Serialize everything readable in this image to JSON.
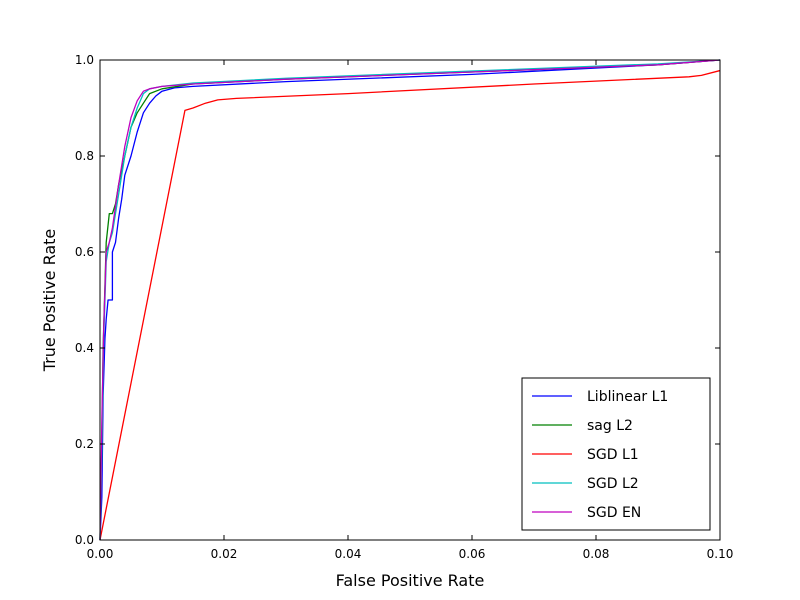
{
  "chart_data": {
    "type": "line",
    "title": "",
    "xlabel": "False Positive Rate",
    "ylabel": "True Positive Rate",
    "xlim": [
      0.0,
      0.1
    ],
    "ylim": [
      0.0,
      1.0
    ],
    "x_ticks": [
      "0.00",
      "0.02",
      "0.04",
      "0.06",
      "0.08",
      "0.10"
    ],
    "y_ticks": [
      "0.0",
      "0.2",
      "0.4",
      "0.6",
      "0.8",
      "1.0"
    ],
    "grid": false,
    "legend_position": "lower-right",
    "series": [
      {
        "name": "Liblinear L1",
        "color": "#0000ff",
        "points": [
          [
            0.0,
            0.0
          ],
          [
            0.0003,
            0.09
          ],
          [
            0.0005,
            0.3
          ],
          [
            0.0008,
            0.42
          ],
          [
            0.001,
            0.46
          ],
          [
            0.0013,
            0.5
          ],
          [
            0.0015,
            0.5
          ],
          [
            0.002,
            0.5
          ],
          [
            0.002,
            0.6
          ],
          [
            0.0025,
            0.62
          ],
          [
            0.003,
            0.67
          ],
          [
            0.0035,
            0.71
          ],
          [
            0.004,
            0.76
          ],
          [
            0.005,
            0.8
          ],
          [
            0.006,
            0.85
          ],
          [
            0.007,
            0.89
          ],
          [
            0.008,
            0.91
          ],
          [
            0.009,
            0.925
          ],
          [
            0.01,
            0.935
          ],
          [
            0.012,
            0.942
          ],
          [
            0.015,
            0.945
          ],
          [
            0.03,
            0.955
          ],
          [
            0.06,
            0.97
          ],
          [
            0.09,
            0.99
          ],
          [
            0.1,
            1.0
          ]
        ]
      },
      {
        "name": "sag L2",
        "color": "#008000",
        "points": [
          [
            0.0,
            0.0
          ],
          [
            0.0003,
            0.2
          ],
          [
            0.0005,
            0.4
          ],
          [
            0.001,
            0.62
          ],
          [
            0.0015,
            0.68
          ],
          [
            0.002,
            0.68
          ],
          [
            0.0025,
            0.7
          ],
          [
            0.003,
            0.74
          ],
          [
            0.004,
            0.8
          ],
          [
            0.005,
            0.86
          ],
          [
            0.006,
            0.89
          ],
          [
            0.007,
            0.91
          ],
          [
            0.008,
            0.93
          ],
          [
            0.01,
            0.94
          ],
          [
            0.015,
            0.95
          ],
          [
            0.03,
            0.96
          ],
          [
            0.06,
            0.975
          ],
          [
            0.09,
            0.99
          ],
          [
            0.1,
            1.0
          ]
        ]
      },
      {
        "name": "SGD L1",
        "color": "#ff0000",
        "points": [
          [
            0.0,
            0.0
          ],
          [
            0.0137,
            0.895
          ],
          [
            0.015,
            0.9
          ],
          [
            0.017,
            0.91
          ],
          [
            0.019,
            0.917
          ],
          [
            0.022,
            0.92
          ],
          [
            0.04,
            0.93
          ],
          [
            0.07,
            0.95
          ],
          [
            0.095,
            0.965
          ],
          [
            0.097,
            0.968
          ],
          [
            0.1,
            0.978
          ]
        ]
      },
      {
        "name": "SGD L2",
        "color": "#00bfbf",
        "points": [
          [
            0.0,
            0.0
          ],
          [
            0.0003,
            0.2
          ],
          [
            0.0006,
            0.42
          ],
          [
            0.001,
            0.58
          ],
          [
            0.0015,
            0.62
          ],
          [
            0.002,
            0.64
          ],
          [
            0.003,
            0.72
          ],
          [
            0.004,
            0.8
          ],
          [
            0.005,
            0.86
          ],
          [
            0.006,
            0.9
          ],
          [
            0.007,
            0.93
          ],
          [
            0.008,
            0.94
          ],
          [
            0.01,
            0.945
          ],
          [
            0.015,
            0.952
          ],
          [
            0.03,
            0.962
          ],
          [
            0.06,
            0.977
          ],
          [
            0.09,
            0.992
          ],
          [
            0.1,
            1.0
          ]
        ]
      },
      {
        "name": "SGD EN",
        "color": "#bf00bf",
        "points": [
          [
            0.0,
            0.0
          ],
          [
            0.0003,
            0.25
          ],
          [
            0.0006,
            0.44
          ],
          [
            0.001,
            0.6
          ],
          [
            0.0015,
            0.62
          ],
          [
            0.002,
            0.65
          ],
          [
            0.003,
            0.74
          ],
          [
            0.004,
            0.82
          ],
          [
            0.005,
            0.88
          ],
          [
            0.006,
            0.915
          ],
          [
            0.007,
            0.935
          ],
          [
            0.008,
            0.94
          ],
          [
            0.01,
            0.945
          ],
          [
            0.015,
            0.95
          ],
          [
            0.03,
            0.96
          ],
          [
            0.06,
            0.975
          ],
          [
            0.09,
            0.99
          ],
          [
            0.1,
            1.0
          ]
        ]
      }
    ]
  }
}
